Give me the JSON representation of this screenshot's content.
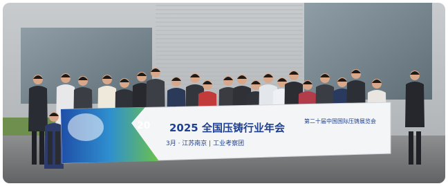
{
  "banner": {
    "badge": "20",
    "title": "2025 全国压铸行业年会",
    "subtitle": "3月 · 江苏南京 | 工业考察团",
    "right_text": "第二十届中国国际压铸展览会"
  }
}
